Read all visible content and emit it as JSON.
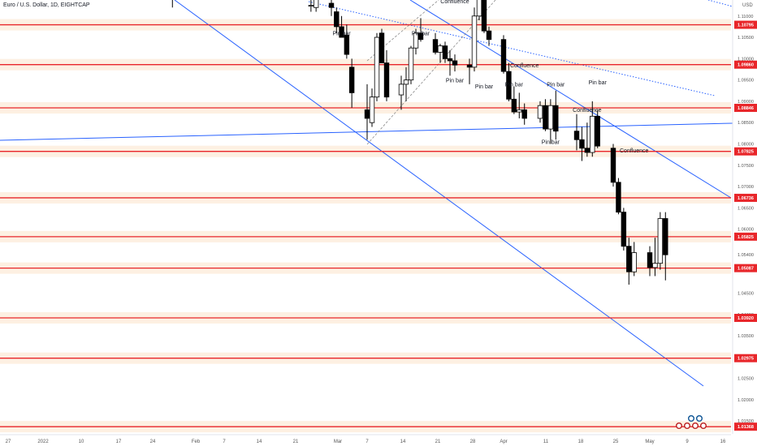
{
  "header": {
    "title": "Euro / U.S. Dollar, 1D, EIGHTCAP",
    "currency": "USD"
  },
  "colors": {
    "level_line": "#e8262a",
    "level_zone": "#fdf0e2",
    "level_label_bg": "#e8262a",
    "trend_line": "#2962ff",
    "candle_up": "#ffffff",
    "candle_down": "#000000",
    "grid_text": "#555555"
  },
  "chart_data": {
    "type": "candlestick",
    "symbol": "EURUSD",
    "timeframe": "1D",
    "ylim": [
      1.012,
      1.113
    ],
    "price_ticks": [
      "1.11000",
      "1.10500",
      "1.10000",
      "1.09500",
      "1.09000",
      "1.08500",
      "1.08000",
      "1.07500",
      "1.07000",
      "1.06500",
      "1.06000",
      "1.05400",
      "1.04500",
      "1.04000",
      "1.03500",
      "1.03000",
      "1.02500",
      "1.02000",
      "1.01500"
    ],
    "time_ticks": [
      "27",
      "2022",
      "10",
      "17",
      "24",
      "Feb",
      "7",
      "14",
      "21",
      "Mar",
      "7",
      "14",
      "21",
      "28",
      "Apr",
      "11",
      "18",
      "25",
      "May",
      "9",
      "16"
    ],
    "levels": [
      "1.10795",
      "1.09860",
      "1.08846",
      "1.07825",
      "1.06736",
      "1.05825",
      "1.05087",
      "1.03920",
      "1.02975",
      "1.01368"
    ],
    "candles": [
      {
        "date": "2022-01-28",
        "open": 1.1165,
        "high": 1.118,
        "low": 1.112,
        "close": 1.115
      },
      {
        "date": "2022-02-24",
        "open": 1.1125,
        "high": 1.114,
        "low": 1.111,
        "close": 1.1125
      },
      {
        "date": "2022-02-25",
        "open": 1.112,
        "high": 1.116,
        "low": 1.111,
        "close": 1.114
      },
      {
        "date": "2022-02-28",
        "open": 1.113,
        "high": 1.115,
        "low": 1.11,
        "close": 1.112
      },
      {
        "date": "2022-03-01",
        "open": 1.111,
        "high": 1.112,
        "low": 1.106,
        "close": 1.1075
      },
      {
        "date": "2022-03-02",
        "open": 1.1075,
        "high": 1.11,
        "low": 1.105,
        "close": 1.105
      },
      {
        "date": "2022-03-03",
        "open": 1.1055,
        "high": 1.108,
        "low": 1.1,
        "close": 1.101
      },
      {
        "date": "2022-03-04",
        "open": 1.098,
        "high": 1.1,
        "low": 1.0885,
        "close": 1.092
      },
      {
        "date": "2022-03-07",
        "open": 1.088,
        "high": 1.094,
        "low": 1.081,
        "close": 1.086
      },
      {
        "date": "2022-03-08",
        "open": 1.085,
        "high": 1.093,
        "low": 1.084,
        "close": 1.091
      },
      {
        "date": "2022-03-09",
        "open": 1.091,
        "high": 1.106,
        "low": 1.09,
        "close": 1.105
      },
      {
        "date": "2022-03-10",
        "open": 1.106,
        "high": 1.107,
        "low": 1.099,
        "close": 1.099
      },
      {
        "date": "2022-03-11",
        "open": 1.099,
        "high": 1.102,
        "low": 1.09,
        "close": 1.091
      },
      {
        "date": "2022-03-14",
        "open": 1.0915,
        "high": 1.096,
        "low": 1.088,
        "close": 1.094
      },
      {
        "date": "2022-03-15",
        "open": 1.094,
        "high": 1.098,
        "low": 1.09,
        "close": 1.095
      },
      {
        "date": "2022-03-16",
        "open": 1.095,
        "high": 1.103,
        "low": 1.094,
        "close": 1.1025
      },
      {
        "date": "2022-03-17",
        "open": 1.1025,
        "high": 1.107,
        "low": 1.101,
        "close": 1.106
      },
      {
        "date": "2022-03-18",
        "open": 1.106,
        "high": 1.1095,
        "low": 1.104,
        "close": 1.1045
      },
      {
        "date": "2022-03-21",
        "open": 1.1045,
        "high": 1.106,
        "low": 1.101,
        "close": 1.1015
      },
      {
        "date": "2022-03-22",
        "open": 1.1015,
        "high": 1.1035,
        "low": 1.099,
        "close": 1.103
      },
      {
        "date": "2022-03-23",
        "open": 1.103,
        "high": 1.104,
        "low": 1.099,
        "close": 1.1
      },
      {
        "date": "2022-03-24",
        "open": 1.1,
        "high": 1.102,
        "low": 1.096,
        "close": 1.0995
      },
      {
        "date": "2022-03-25",
        "open": 1.0995,
        "high": 1.101,
        "low": 1.097,
        "close": 1.0985
      },
      {
        "date": "2022-03-28",
        "open": 1.0985,
        "high": 1.1,
        "low": 1.094,
        "close": 1.098
      },
      {
        "date": "2022-03-29",
        "open": 1.098,
        "high": 1.112,
        "low": 1.097,
        "close": 1.11
      },
      {
        "date": "2022-03-30",
        "open": 1.11,
        "high": 1.118,
        "low": 1.109,
        "close": 1.116
      },
      {
        "date": "2022-03-31",
        "open": 1.116,
        "high": 1.1185,
        "low": 1.106,
        "close": 1.1065
      },
      {
        "date": "2022-04-01",
        "open": 1.1065,
        "high": 1.1075,
        "low": 1.103,
        "close": 1.1045
      },
      {
        "date": "2022-04-04",
        "open": 1.1045,
        "high": 1.1055,
        "low": 1.0965,
        "close": 1.097
      },
      {
        "date": "2022-04-05",
        "open": 1.097,
        "high": 1.099,
        "low": 1.09,
        "close": 1.0905
      },
      {
        "date": "2022-04-06",
        "open": 1.0905,
        "high": 1.0935,
        "low": 1.087,
        "close": 1.0875
      },
      {
        "date": "2022-04-07",
        "open": 1.0875,
        "high": 1.092,
        "low": 1.086,
        "close": 1.088
      },
      {
        "date": "2022-04-08",
        "open": 1.088,
        "high": 1.0895,
        "low": 1.0845,
        "close": 1.086
      },
      {
        "date": "2022-04-11",
        "open": 1.086,
        "high": 1.09,
        "low": 1.085,
        "close": 1.089
      },
      {
        "date": "2022-04-12",
        "open": 1.089,
        "high": 1.0905,
        "low": 1.083,
        "close": 1.0835
      },
      {
        "date": "2022-04-13",
        "open": 1.0835,
        "high": 1.0905,
        "low": 1.08,
        "close": 1.089
      },
      {
        "date": "2022-04-14",
        "open": 1.089,
        "high": 1.0925,
        "low": 1.081,
        "close": 1.083
      },
      {
        "date": "2022-04-18",
        "open": 1.083,
        "high": 1.087,
        "low": 1.0785,
        "close": 1.081
      },
      {
        "date": "2022-04-19",
        "open": 1.081,
        "high": 1.084,
        "low": 1.076,
        "close": 1.079
      },
      {
        "date": "2022-04-20",
        "open": 1.079,
        "high": 1.085,
        "low": 1.077,
        "close": 1.078
      },
      {
        "date": "2022-04-21",
        "open": 1.078,
        "high": 1.09,
        "low": 1.077,
        "close": 1.0865
      },
      {
        "date": "2022-04-22",
        "open": 1.0865,
        "high": 1.088,
        "low": 1.079,
        "close": 1.0795
      },
      {
        "date": "2022-04-25",
        "open": 1.079,
        "high": 1.08,
        "low": 1.07,
        "close": 1.071
      },
      {
        "date": "2022-04-26",
        "open": 1.071,
        "high": 1.072,
        "low": 1.0635,
        "close": 1.064
      },
      {
        "date": "2022-04-27",
        "open": 1.064,
        "high": 1.065,
        "low": 1.055,
        "close": 1.056
      },
      {
        "date": "2022-04-28",
        "open": 1.056,
        "high": 1.058,
        "low": 1.047,
        "close": 1.05
      },
      {
        "date": "2022-04-29",
        "open": 1.05,
        "high": 1.057,
        "low": 1.049,
        "close": 1.0545
      },
      {
        "date": "2022-05-02",
        "open": 1.0545,
        "high": 1.056,
        "low": 1.049,
        "close": 1.051
      },
      {
        "date": "2022-05-03",
        "open": 1.051,
        "high": 1.058,
        "low": 1.049,
        "close": 1.052
      },
      {
        "date": "2022-05-04",
        "open": 1.052,
        "high": 1.064,
        "low": 1.0505,
        "close": 1.0625
      },
      {
        "date": "2022-05-05",
        "open": 1.0625,
        "high": 1.064,
        "low": 1.048,
        "close": 1.054
      }
    ],
    "annotations": [
      {
        "text": "Pin bar",
        "date": "2022-03-02",
        "price": 1.1055
      },
      {
        "text": "Pin bar",
        "date": "2022-03-18",
        "price": 1.1055
      },
      {
        "text": "Confluence",
        "date": "2022-03-25",
        "price": 1.113
      },
      {
        "text": "Pin bar",
        "date": "2022-03-25",
        "price": 1.0945
      },
      {
        "text": "Pin bar",
        "date": "2022-03-31",
        "price": 1.093
      },
      {
        "text": "Confluence",
        "date": "2022-04-08",
        "price": 1.098
      },
      {
        "text": "Pin bar",
        "date": "2022-04-06",
        "price": 1.0935
      },
      {
        "text": "Pin bar",
        "date": "2022-04-14",
        "price": 1.0935
      },
      {
        "text": "Confluence",
        "date": "2022-04-20",
        "price": 1.0875
      },
      {
        "text": "Pin bar",
        "date": "2022-04-22",
        "price": 1.094
      },
      {
        "text": "Pin bar",
        "date": "2022-04-13",
        "price": 1.08
      },
      {
        "text": "Confluence",
        "date": "2022-04-29",
        "price": 1.078
      }
    ]
  }
}
